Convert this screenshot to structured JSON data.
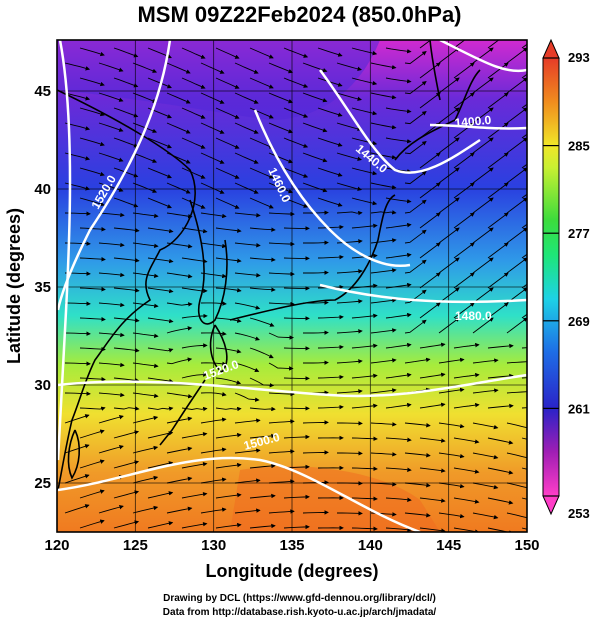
{
  "title": "MSM 09Z22Feb2024 (850.0hPa)",
  "map": {
    "xlabel": "Longitude (degrees)",
    "ylabel": "Latitude  (degrees)",
    "lon_ticks": [
      "120",
      "125",
      "130",
      "135",
      "140",
      "145",
      "150"
    ],
    "lat_ticks": [
      "25",
      "30",
      "35",
      "40",
      "45"
    ],
    "lon_range": [
      120,
      150
    ],
    "lat_range": [
      22.5,
      47.6
    ],
    "grid": true
  },
  "contours": {
    "color": "#ffffff",
    "labels": [
      "1520.0",
      "1460.0",
      "1440.0",
      "1400.0",
      "1480.0",
      "1520.0",
      "1500.0"
    ]
  },
  "colorbar": {
    "ticks": [
      "253",
      "261",
      "269",
      "277",
      "285",
      "293"
    ],
    "range": [
      253,
      293
    ],
    "colors": [
      "#ff3ec8",
      "#a01eb4",
      "#2a23c8",
      "#1e6ee6",
      "#1ed2e6",
      "#1ee678",
      "#3cdc3c",
      "#c8f032",
      "#f0e628",
      "#f08c1e",
      "#e63c28"
    ]
  },
  "credits": {
    "line1": "Drawing by DCL (https://www.gfd-dennou.org/library/dcl/)",
    "line2": "Data from http://database.rish.kyoto-u.ac.jp/arch/jmadata/"
  }
}
